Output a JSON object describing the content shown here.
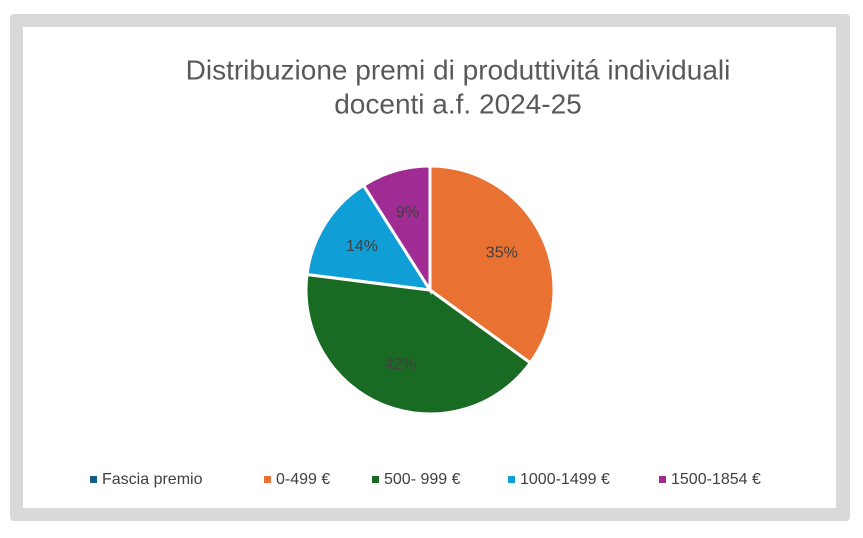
{
  "chart_data": {
    "type": "pie",
    "title": [
      "Distribuzione premi di produttivitá individuali",
      "docenti a.f. 2024-25"
    ],
    "categories": [
      "Fascia premio",
      "0-499 €",
      "500- 999 €",
      "1000-1499 €",
      "1500-1854 €"
    ],
    "values": [
      null,
      35,
      42,
      14,
      9
    ],
    "value_labels": [
      null,
      "35%",
      "42%",
      "14%",
      "9%"
    ],
    "colors": [
      "#156082",
      "#e97132",
      "#196b24",
      "#0f9ed5",
      "#a02b93"
    ],
    "legend": "bottom"
  }
}
